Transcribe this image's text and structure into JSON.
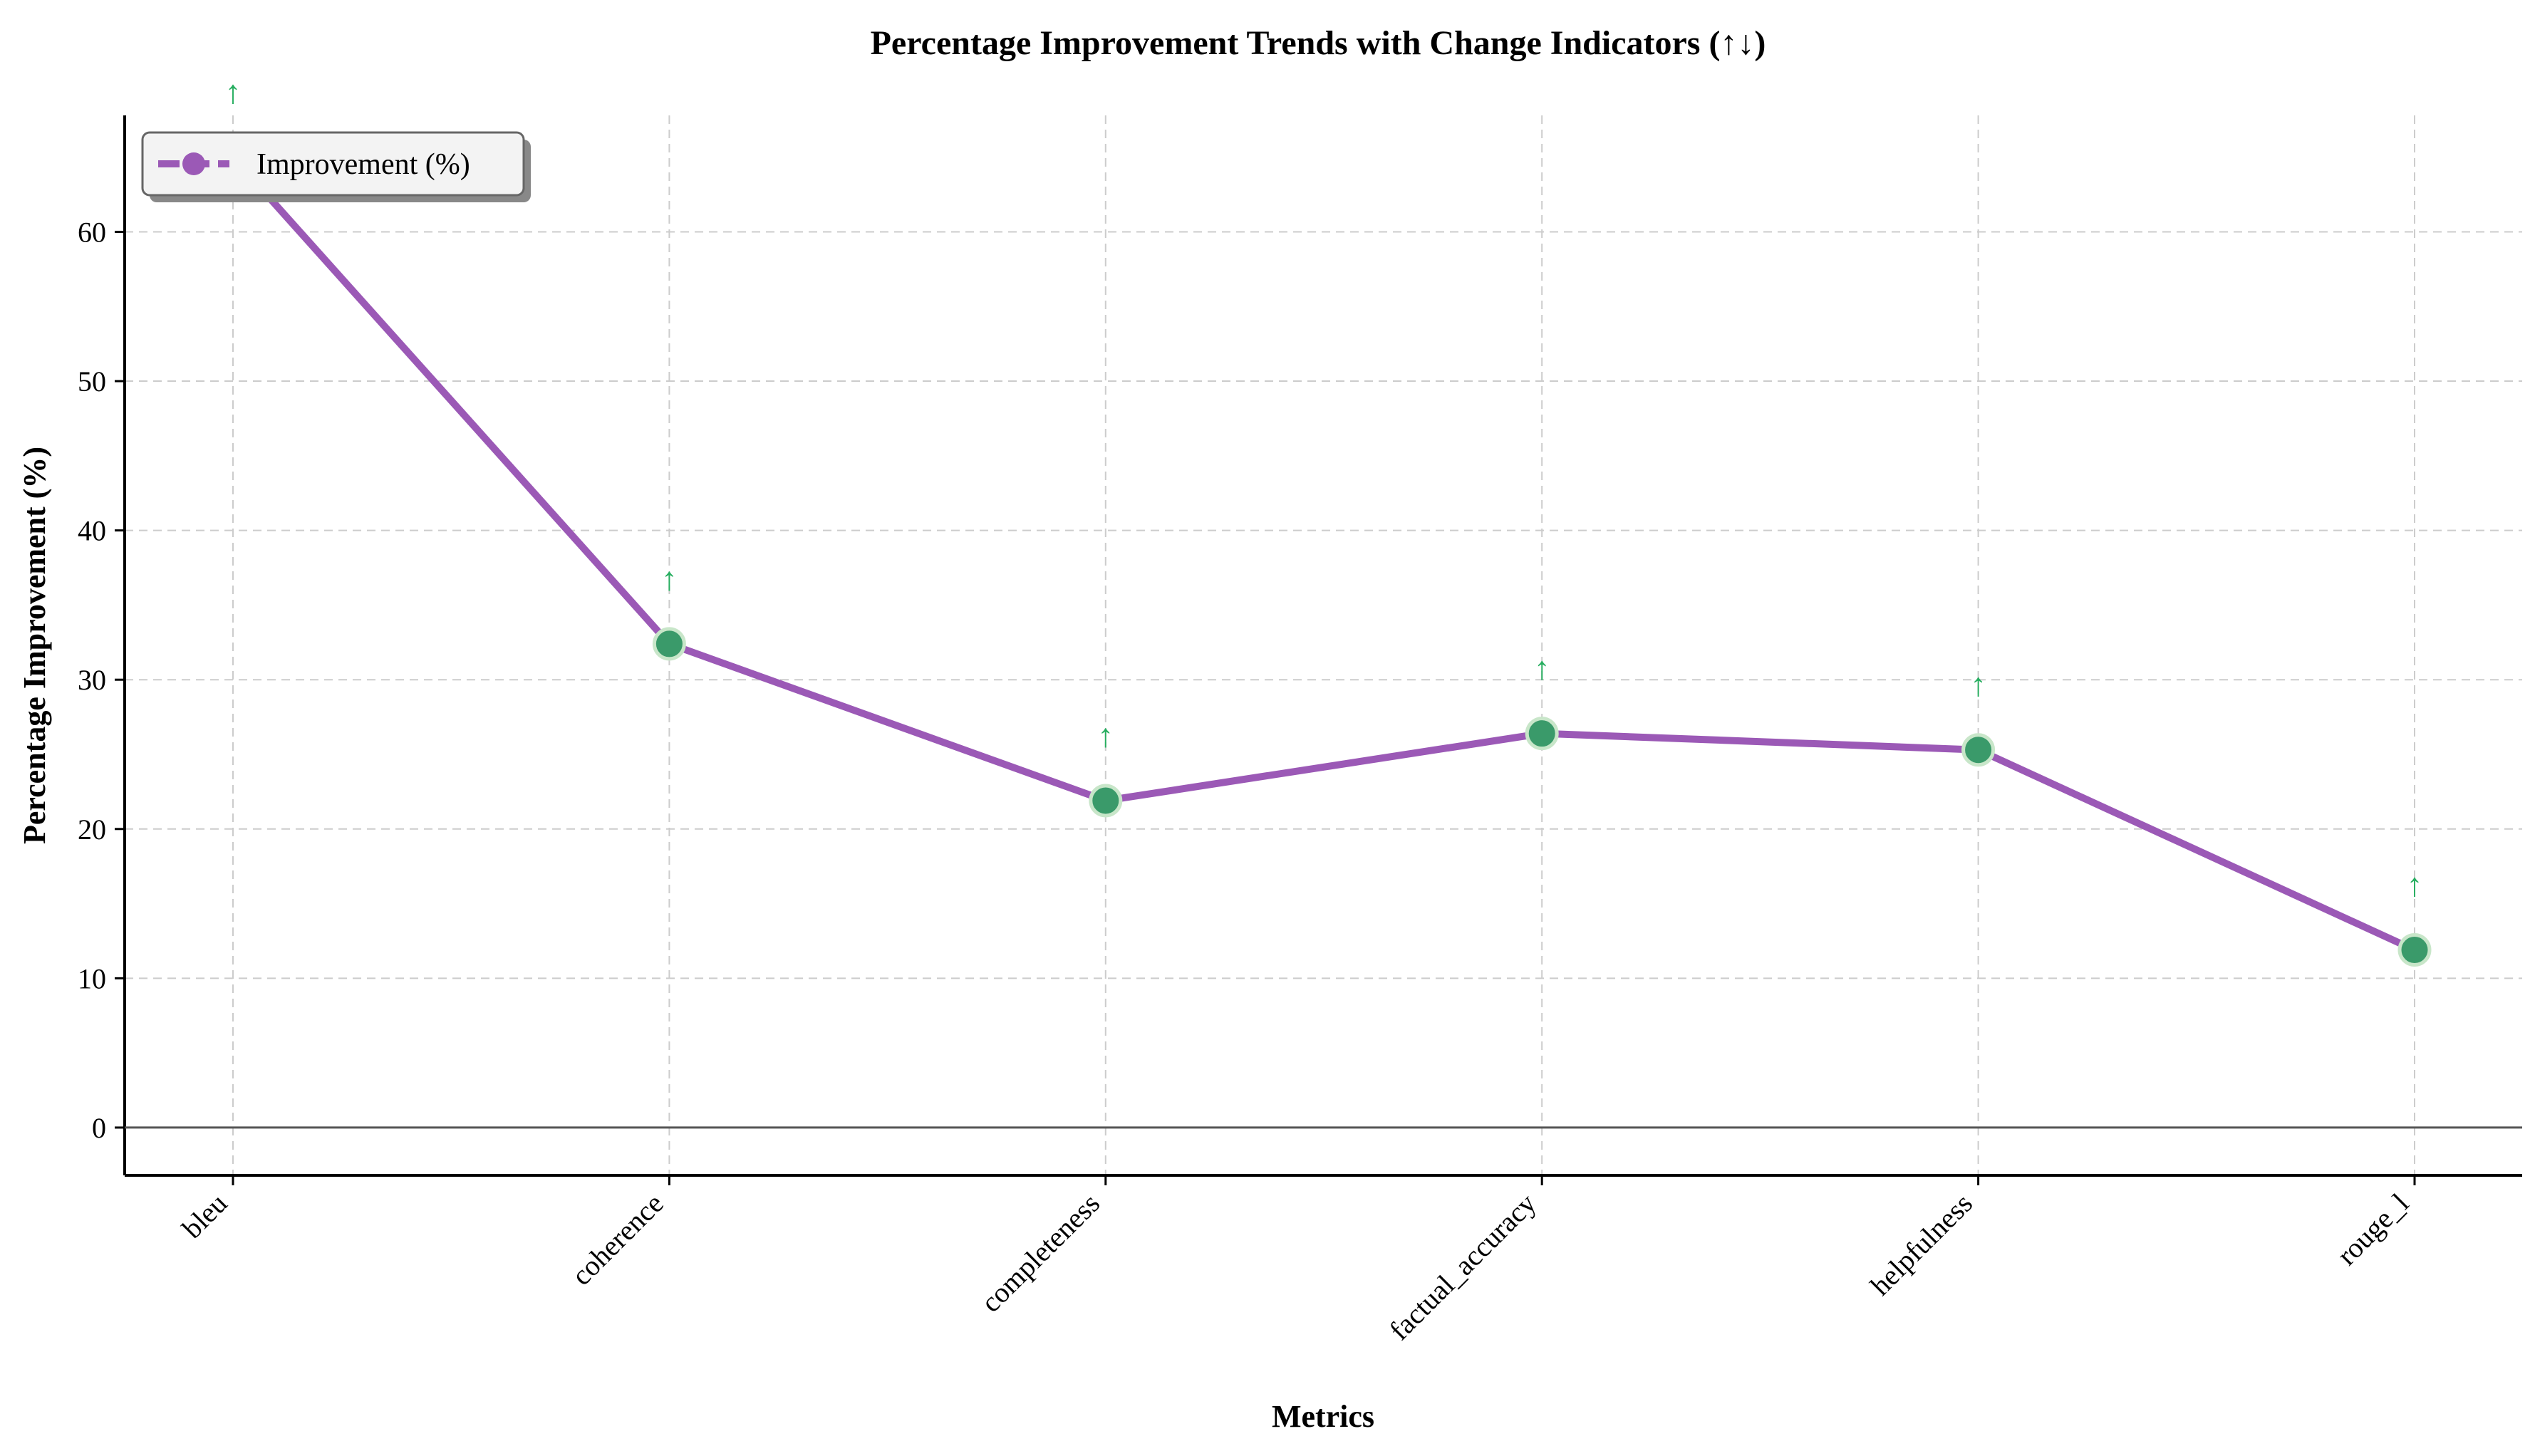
{
  "chart_data": {
    "type": "line",
    "title": "Percentage Improvement Trends with Change Indicators (↑↓)",
    "xlabel": "Metrics",
    "ylabel": "Percentage Improvement (%)",
    "categories": [
      "bleu",
      "coherence",
      "completeness",
      "factual_accuracy",
      "helpfulness",
      "rouge_l"
    ],
    "series": [
      {
        "name": "Improvement (%)",
        "values": [
          65.0,
          32.4,
          21.9,
          26.4,
          25.3,
          11.9
        ],
        "change_indicators": [
          "↑",
          "↑",
          "↑",
          "↑",
          "↑",
          "↑"
        ]
      }
    ],
    "ylim": [
      -3.2,
      67.8
    ],
    "yticks": [
      0,
      10,
      20,
      30,
      40,
      50,
      60
    ],
    "grid": true,
    "zero_line": true,
    "legend_position": "top-left",
    "colors": {
      "line": "#9b59b6",
      "marker_fill": "#3a9a6a",
      "marker_edge": "#c8e6c9",
      "indicator_up": "#27ae60",
      "grid": "#cccccc",
      "zero_line": "#555555"
    }
  }
}
